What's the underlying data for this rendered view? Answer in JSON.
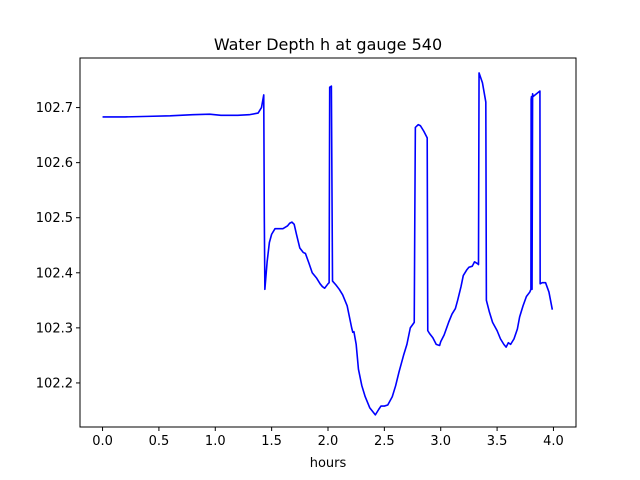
{
  "chart_data": {
    "type": "line",
    "title": "Water Depth h at gauge 540",
    "xlabel": "hours",
    "ylabel": "",
    "xlim": [
      -0.2,
      4.2
    ],
    "ylim": [
      102.12,
      102.79
    ],
    "x_ticks": [
      0.0,
      0.5,
      1.0,
      1.5,
      2.0,
      2.5,
      3.0,
      3.5,
      4.0
    ],
    "x_tick_labels": [
      "0.0",
      "0.5",
      "1.0",
      "1.5",
      "2.0",
      "2.5",
      "3.0",
      "3.5",
      "4.0"
    ],
    "y_ticks": [
      102.2,
      102.3,
      102.4,
      102.5,
      102.6,
      102.7
    ],
    "y_tick_labels": [
      "102.2",
      "102.3",
      "102.4",
      "102.5",
      "102.6",
      "102.7"
    ],
    "grid": false,
    "series": [
      {
        "color": "#0000ff",
        "x": [
          0.0,
          0.2,
          0.4,
          0.6,
          0.8,
          0.95,
          1.05,
          1.2,
          1.3,
          1.38,
          1.41,
          1.43,
          1.435,
          1.44,
          1.46,
          1.48,
          1.5,
          1.53,
          1.55,
          1.6,
          1.64,
          1.66,
          1.68,
          1.7,
          1.72,
          1.75,
          1.78,
          1.8,
          1.83,
          1.86,
          1.9,
          1.93,
          1.95,
          1.97,
          2.0,
          2.01,
          2.015,
          2.025,
          2.03,
          2.04,
          2.07,
          2.1,
          2.13,
          2.15,
          2.17,
          2.19,
          2.21,
          2.22,
          2.23,
          2.25,
          2.27,
          2.3,
          2.33,
          2.37,
          2.42,
          2.45,
          2.47,
          2.5,
          2.53,
          2.57,
          2.6,
          2.63,
          2.67,
          2.7,
          2.73,
          2.765,
          2.77,
          2.775,
          2.8,
          2.82,
          2.85,
          2.88,
          2.885,
          2.9,
          2.93,
          2.96,
          2.99,
          3.0,
          3.03,
          3.07,
          3.1,
          3.13,
          3.15,
          3.18,
          3.2,
          3.23,
          3.25,
          3.28,
          3.3,
          3.33,
          3.335,
          3.34,
          3.37,
          3.4,
          3.405,
          3.43,
          3.46,
          3.5,
          3.53,
          3.56,
          3.58,
          3.6,
          3.62,
          3.65,
          3.68,
          3.7,
          3.73,
          3.76,
          3.79,
          3.8,
          3.802,
          3.805,
          3.81,
          3.815,
          3.82,
          3.85,
          3.88,
          3.882,
          3.9,
          3.93,
          3.96,
          3.99
        ],
        "values": [
          102.683,
          102.683,
          102.684,
          102.685,
          102.687,
          102.688,
          102.686,
          102.686,
          102.687,
          102.69,
          102.7,
          102.723,
          102.5,
          102.37,
          102.42,
          102.455,
          102.47,
          102.48,
          102.48,
          102.48,
          102.485,
          102.49,
          102.492,
          102.488,
          102.47,
          102.445,
          102.437,
          102.435,
          102.418,
          102.4,
          102.39,
          102.38,
          102.375,
          102.372,
          102.38,
          102.382,
          102.737,
          102.738,
          102.739,
          102.385,
          102.378,
          102.37,
          102.36,
          102.35,
          102.34,
          102.32,
          102.3,
          102.292,
          102.293,
          102.27,
          102.225,
          102.195,
          102.175,
          102.155,
          102.142,
          102.152,
          102.158,
          102.158,
          102.16,
          102.175,
          102.195,
          102.22,
          102.25,
          102.27,
          102.3,
          102.31,
          102.5,
          102.664,
          102.669,
          102.667,
          102.657,
          102.645,
          102.295,
          102.29,
          102.282,
          102.27,
          102.268,
          102.275,
          102.287,
          102.31,
          102.325,
          102.335,
          102.35,
          102.375,
          102.395,
          102.405,
          102.41,
          102.412,
          102.42,
          102.416,
          102.415,
          102.763,
          102.745,
          102.71,
          102.35,
          102.33,
          102.31,
          102.295,
          102.28,
          102.27,
          102.265,
          102.273,
          102.27,
          102.28,
          102.298,
          102.32,
          102.34,
          102.357,
          102.365,
          102.37,
          102.715,
          102.72,
          102.37,
          102.725,
          102.72,
          102.725,
          102.73,
          102.38,
          102.382,
          102.382,
          102.365,
          102.333
        ]
      }
    ]
  }
}
